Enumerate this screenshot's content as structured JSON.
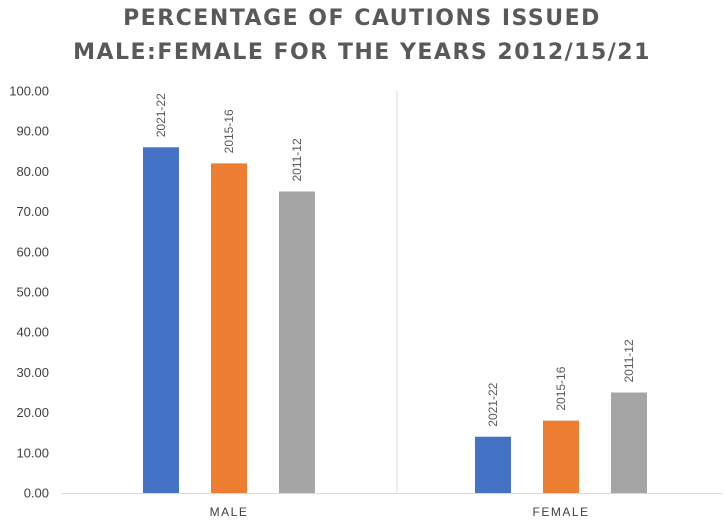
{
  "chart_data": {
    "type": "bar",
    "title_lines": [
      "PERCENTAGE OF CAUTIONS ISSUED",
      "MALE:FEMALE FOR THE YEARS 2012/15/21"
    ],
    "categories": [
      "MALE",
      "FEMALE"
    ],
    "series": [
      {
        "name": "2021-22",
        "values": [
          86.0,
          14.0
        ],
        "color": "#4472C4"
      },
      {
        "name": "2015-16",
        "values": [
          82.0,
          18.0
        ],
        "color": "#ED7D31"
      },
      {
        "name": "2011-12",
        "values": [
          75.0,
          25.0
        ],
        "color": "#A5A5A5"
      }
    ],
    "y_ticks": [
      "0.00",
      "10.00",
      "20.00",
      "30.00",
      "40.00",
      "50.00",
      "60.00",
      "70.00",
      "80.00",
      "90.00",
      "100.00"
    ],
    "ylim": [
      0,
      100
    ],
    "xlabel": "",
    "ylabel": "",
    "grid": false,
    "legend": "none",
    "data_labels": "series name, rotated, above each bar"
  }
}
